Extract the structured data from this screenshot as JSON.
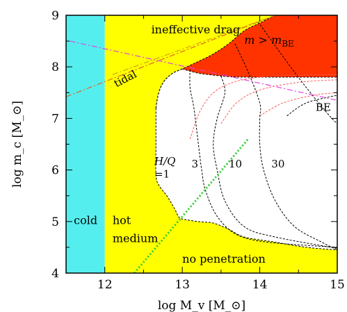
{
  "chart_data": {
    "type": "area",
    "xlabel": "log M_v [M_⊙]",
    "ylabel": "log m_c [M_⊙]",
    "xlim": [
      11.5,
      15
    ],
    "ylim": [
      4,
      9
    ],
    "x_ticks": [
      12,
      13,
      14,
      15
    ],
    "y_ticks": [
      4,
      5,
      6,
      7,
      8,
      9
    ],
    "x_tick_labels": [
      "12",
      "13",
      "14",
      "15"
    ],
    "y_tick_labels": [
      "4",
      "5",
      "6",
      "7",
      "8",
      "9"
    ],
    "grid": false,
    "colors": {
      "cold": "#55eeee",
      "hot": "#ffff00",
      "be_region": "#ff3300",
      "inside": "#ffffff",
      "tidal": "#dd6622",
      "ineffective_drag": "#ccaa00",
      "be_line": "#dd44dd",
      "no_penetration_line": "#33cc33",
      "hq_contours": "#000000",
      "red_dashed": "#ff5555"
    },
    "regions": {
      "cold": {
        "label": "cold",
        "x_range": [
          11.5,
          12
        ]
      },
      "hot_medium": {
        "label1": "hot",
        "label2": "medium",
        "x_range": [
          12,
          15
        ]
      },
      "no_penetration": {
        "label": "no penetration"
      },
      "ineffective_drag": {
        "label": "ineffective drag"
      },
      "be_region": {
        "label_math": "m > m",
        "label_sub": "BE"
      }
    },
    "annotations": {
      "tidal": "tidal",
      "be": "BE",
      "hq_label": "H/Q",
      "hq_values": [
        "=1",
        "3",
        "10",
        "30"
      ]
    },
    "boundary_upper": [
      [
        12.66,
        7.2
      ],
      [
        12.68,
        7.4
      ],
      [
        12.72,
        7.6
      ],
      [
        12.78,
        7.75
      ],
      [
        12.88,
        7.88
      ],
      [
        13.0,
        7.96
      ],
      [
        13.2,
        8.1
      ],
      [
        13.4,
        8.25
      ],
      [
        13.6,
        8.45
      ],
      [
        13.8,
        8.7
      ],
      [
        14.0,
        8.85
      ],
      [
        14.2,
        9.0
      ]
    ],
    "boundary_lower": [
      [
        12.66,
        7.2
      ],
      [
        12.66,
        6.5
      ],
      [
        12.66,
        5.9
      ],
      [
        12.7,
        5.7
      ],
      [
        12.8,
        5.5
      ],
      [
        12.9,
        5.25
      ],
      [
        12.95,
        5.1
      ],
      [
        13.0,
        5.05
      ],
      [
        13.2,
        5.0
      ],
      [
        13.4,
        4.97
      ],
      [
        13.6,
        4.85
      ],
      [
        13.8,
        4.7
      ],
      [
        14.2,
        4.6
      ],
      [
        14.6,
        4.5
      ],
      [
        15.0,
        4.45
      ]
    ],
    "be_curve": [
      [
        13.0,
        7.96
      ],
      [
        13.2,
        7.88
      ],
      [
        13.4,
        7.84
      ],
      [
        13.6,
        7.81
      ],
      [
        13.8,
        7.8
      ],
      [
        14.2,
        7.8
      ],
      [
        14.6,
        7.8
      ],
      [
        15.0,
        7.8
      ]
    ],
    "hq_contours": [
      {
        "label": "3",
        "points": [
          [
            13.1,
            7.95
          ],
          [
            13.1,
            7.6
          ],
          [
            13.15,
            7.2
          ],
          [
            13.2,
            6.6
          ],
          [
            13.25,
            6.0
          ],
          [
            13.3,
            5.6
          ],
          [
            13.45,
            5.1
          ],
          [
            13.7,
            4.75
          ],
          [
            14.1,
            4.6
          ],
          [
            15.0,
            4.5
          ]
        ]
      },
      {
        "label": "10",
        "points": [
          [
            13.5,
            7.82
          ],
          [
            13.55,
            7.5
          ],
          [
            13.45,
            7.0
          ],
          [
            13.4,
            6.5
          ],
          [
            13.45,
            6.0
          ],
          [
            13.55,
            5.4
          ],
          [
            13.8,
            4.9
          ],
          [
            14.2,
            4.7
          ],
          [
            15.0,
            4.48
          ]
        ]
      },
      {
        "label": "30",
        "points": [
          [
            13.68,
            8.45
          ],
          [
            13.85,
            7.9
          ],
          [
            14.0,
            7.3
          ],
          [
            14.0,
            7.0
          ],
          [
            14.0,
            6.5
          ],
          [
            14.05,
            6.0
          ],
          [
            14.2,
            5.4
          ],
          [
            14.45,
            4.9
          ],
          [
            14.8,
            4.6
          ],
          [
            15.0,
            4.45
          ]
        ]
      },
      {
        "label": "",
        "points": [
          [
            13.98,
            8.87
          ],
          [
            14.3,
            8.2
          ],
          [
            14.6,
            7.6
          ],
          [
            14.9,
            7.05
          ],
          [
            15.0,
            6.9
          ]
        ]
      },
      {
        "label": "",
        "points": [
          [
            14.35,
            7.05
          ],
          [
            14.6,
            7.3
          ],
          [
            15.0,
            7.45
          ]
        ]
      }
    ],
    "red_contours": [
      {
        "points": [
          [
            13.1,
            6.6
          ],
          [
            13.25,
            7.2
          ],
          [
            13.5,
            7.6
          ],
          [
            14.0,
            7.8
          ],
          [
            15.0,
            7.85
          ]
        ]
      },
      {
        "points": [
          [
            13.5,
            6.9
          ],
          [
            13.7,
            7.3
          ],
          [
            14.0,
            7.55
          ],
          [
            14.5,
            7.7
          ],
          [
            15.0,
            7.75
          ]
        ]
      },
      {
        "points": [
          [
            14.0,
            7.05
          ],
          [
            14.3,
            7.3
          ],
          [
            14.7,
            7.45
          ],
          [
            15.0,
            7.5
          ]
        ]
      }
    ],
    "tidal_line": [
      [
        11.5,
        7.42
      ],
      [
        14.2,
        9.0
      ]
    ],
    "ineffective_drag_line": [
      [
        12.1,
        7.85
      ],
      [
        14.2,
        9.0
      ]
    ],
    "be_line": [
      [
        11.55,
        8.5
      ],
      [
        15.0,
        7.35
      ]
    ],
    "no_penetration_line": [
      [
        12.38,
        4.0
      ],
      [
        13.85,
        6.6
      ]
    ]
  }
}
